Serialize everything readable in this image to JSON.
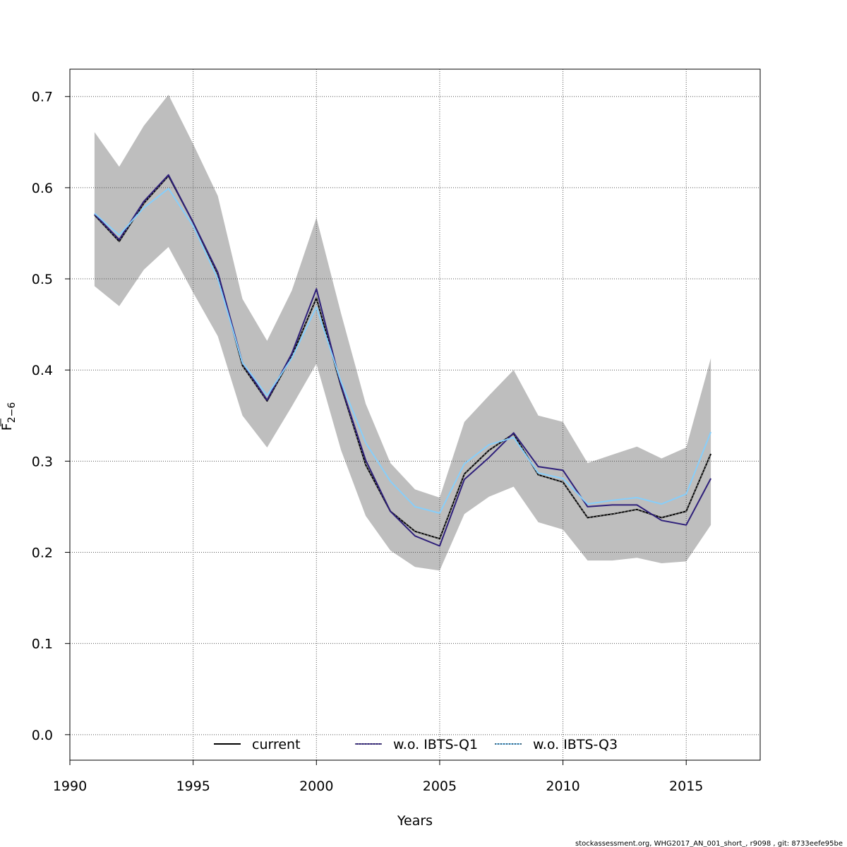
{
  "chart_data": {
    "type": "line",
    "xlabel": "Years",
    "ylabel_main": "F",
    "ylabel_sub": "2−6",
    "xlim": [
      1990,
      2018
    ],
    "ylim": [
      -0.028,
      0.73
    ],
    "x_ticks": [
      1990,
      1995,
      2000,
      2005,
      2010,
      2015
    ],
    "y_ticks": [
      0.0,
      0.1,
      0.2,
      0.3,
      0.4,
      0.5,
      0.6,
      0.7
    ],
    "y_tick_labels": [
      "0.0",
      "0.1",
      "0.2",
      "0.3",
      "0.4",
      "0.5",
      "0.6",
      "0.7"
    ],
    "x_grid": [
      1995,
      2000,
      2005,
      2010,
      2015
    ],
    "grid": true,
    "legend_position": "bottom",
    "x": [
      1991,
      1992,
      1993,
      1994,
      1995,
      1996,
      1997,
      1998,
      1999,
      2000,
      2001,
      2002,
      2003,
      2004,
      2005,
      2006,
      2007,
      2008,
      2009,
      2010,
      2011,
      2012,
      2013,
      2014,
      2015,
      2016
    ],
    "band": {
      "color": "#bebebe",
      "lower": [
        0.492,
        0.47,
        0.51,
        0.535,
        0.485,
        0.437,
        0.35,
        0.315,
        0.36,
        0.407,
        0.312,
        0.24,
        0.202,
        0.184,
        0.18,
        0.242,
        0.261,
        0.272,
        0.233,
        0.225,
        0.191,
        0.191,
        0.194,
        0.188,
        0.19,
        0.23
      ],
      "upper": [
        0.661,
        0.623,
        0.668,
        0.702,
        0.648,
        0.591,
        0.478,
        0.432,
        0.487,
        0.567,
        0.462,
        0.363,
        0.298,
        0.269,
        0.26,
        0.343,
        0.372,
        0.4,
        0.35,
        0.343,
        0.298,
        0.307,
        0.316,
        0.303,
        0.315,
        0.413
      ]
    },
    "series": [
      {
        "name": "current",
        "color": "#000000",
        "dash": "solid",
        "values": [
          0.57,
          0.541,
          0.583,
          0.613,
          0.562,
          0.505,
          0.405,
          0.366,
          0.415,
          0.479,
          0.382,
          0.296,
          0.245,
          0.223,
          0.215,
          0.286,
          0.312,
          0.33,
          0.285,
          0.277,
          0.238,
          0.242,
          0.247,
          0.238,
          0.245,
          0.308
        ]
      },
      {
        "name": "w.o. IBTS-Q1",
        "color": "#2e1f7a",
        "dash": "solid",
        "values": [
          0.571,
          0.543,
          0.585,
          0.614,
          0.562,
          0.507,
          0.408,
          0.367,
          0.418,
          0.489,
          0.383,
          0.301,
          0.245,
          0.218,
          0.207,
          0.28,
          0.304,
          0.331,
          0.294,
          0.29,
          0.25,
          0.252,
          0.252,
          0.235,
          0.23,
          0.281
        ]
      },
      {
        "name": "w.o. IBTS-Q3",
        "color": "#87cefa",
        "dash": "solid",
        "values": [
          0.572,
          0.548,
          0.578,
          0.599,
          0.558,
          0.5,
          0.408,
          0.372,
          0.413,
          0.469,
          0.387,
          0.32,
          0.278,
          0.25,
          0.243,
          0.297,
          0.318,
          0.326,
          0.287,
          0.281,
          0.253,
          0.257,
          0.26,
          0.253,
          0.264,
          0.332
        ]
      }
    ],
    "legend": [
      {
        "label": "current",
        "color": "#000000",
        "style": "solid"
      },
      {
        "label": "w.o. IBTS-Q1",
        "color": "#2e1f7a",
        "style": "dotted-over-dark"
      },
      {
        "label": "w.o. IBTS-Q3",
        "color": "#87cefa",
        "style": "dotted-over-light"
      }
    ]
  },
  "footer": "stockassessment.org, WHG2017_AN_001_short_, r9098 , git: 8733eefe95be"
}
